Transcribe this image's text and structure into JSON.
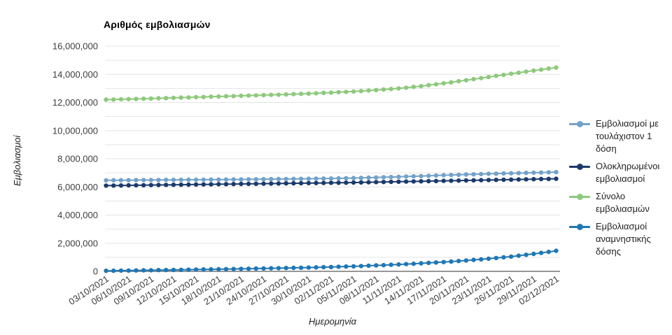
{
  "chart": {
    "title": "Αριθμός εμβολιασμών",
    "x_axis_title": "Ημερομηνία",
    "y_axis_title": "Εμβολιασμοί"
  },
  "colors": {
    "gridline": "#e4e4e4",
    "axis_baseline": "#757575",
    "tick_label": "#3c3c3c",
    "title_text": "#000000"
  },
  "chart_data": {
    "type": "line",
    "title": "Αριθμός εμβολιασμών",
    "xlabel": "Ημερομηνία",
    "ylabel": "Εμβολιασμοί",
    "ylim": [
      0,
      16000000
    ],
    "y_labeled_tick_step": 2000000,
    "y_gridline_step": 1000000,
    "x_tick_every_n_points": 3,
    "grid": true,
    "legend_position": "right",
    "marker_style": "point",
    "x": [
      "03/10/2021",
      "04/10/2021",
      "05/10/2021",
      "06/10/2021",
      "07/10/2021",
      "08/10/2021",
      "09/10/2021",
      "10/10/2021",
      "11/10/2021",
      "12/10/2021",
      "13/10/2021",
      "14/10/2021",
      "15/10/2021",
      "16/10/2021",
      "17/10/2021",
      "18/10/2021",
      "19/10/2021",
      "20/10/2021",
      "21/10/2021",
      "22/10/2021",
      "23/10/2021",
      "24/10/2021",
      "25/10/2021",
      "26/10/2021",
      "27/10/2021",
      "28/10/2021",
      "29/10/2021",
      "30/10/2021",
      "31/10/2021",
      "01/11/2021",
      "02/11/2021",
      "03/11/2021",
      "04/11/2021",
      "05/11/2021",
      "06/11/2021",
      "07/11/2021",
      "08/11/2021",
      "09/11/2021",
      "10/11/2021",
      "11/11/2021",
      "12/11/2021",
      "13/11/2021",
      "14/11/2021",
      "15/11/2021",
      "16/11/2021",
      "17/11/2021",
      "18/11/2021",
      "19/11/2021",
      "20/11/2021",
      "21/11/2021",
      "22/11/2021",
      "23/11/2021",
      "24/11/2021",
      "25/11/2021",
      "26/11/2021",
      "27/11/2021",
      "28/11/2021",
      "29/11/2021",
      "30/11/2021",
      "01/12/2021",
      "02/12/2021"
    ],
    "series": [
      {
        "name": "Εμβολιασμοί με τουλάχιστον 1 δόση",
        "color": "#73a2c9",
        "values": [
          6470000,
          6473000,
          6477000,
          6480000,
          6483000,
          6487000,
          6490000,
          6493000,
          6497000,
          6500000,
          6503000,
          6507000,
          6510000,
          6513000,
          6517000,
          6520000,
          6523000,
          6527000,
          6530000,
          6537000,
          6543000,
          6550000,
          6553000,
          6557000,
          6560000,
          6567000,
          6573000,
          6580000,
          6587000,
          6593000,
          6600000,
          6610000,
          6620000,
          6630000,
          6643000,
          6657000,
          6670000,
          6687000,
          6703000,
          6720000,
          6737000,
          6753000,
          6770000,
          6790000,
          6810000,
          6830000,
          6847000,
          6863000,
          6880000,
          6897000,
          6913000,
          6930000,
          6943000,
          6957000,
          6970000,
          6983000,
          6997000,
          7010000,
          7023000,
          7037000,
          7050000
        ]
      },
      {
        "name": "Ολοκληρωμένοι εμβολιασμοί",
        "color": "#1b3a6b",
        "values": [
          6090000,
          6097000,
          6103000,
          6110000,
          6117000,
          6123000,
          6130000,
          6137000,
          6143000,
          6150000,
          6157000,
          6163000,
          6170000,
          6177000,
          6183000,
          6190000,
          6197000,
          6203000,
          6210000,
          6217000,
          6223000,
          6230000,
          6237000,
          6243000,
          6250000,
          6257000,
          6263000,
          6270000,
          6277000,
          6283000,
          6290000,
          6297000,
          6303000,
          6310000,
          6320000,
          6330000,
          6340000,
          6350000,
          6360000,
          6370000,
          6380000,
          6390000,
          6400000,
          6410000,
          6420000,
          6430000,
          6440000,
          6450000,
          6460000,
          6470000,
          6480000,
          6490000,
          6500000,
          6510000,
          6520000,
          6530000,
          6540000,
          6550000,
          6560000,
          6570000,
          6580000
        ]
      },
      {
        "name": "Σύνολο εμβολιασμών",
        "color": "#8ec97d",
        "values": [
          12200000,
          12210000,
          12230000,
          12240000,
          12250000,
          12270000,
          12280000,
          12300000,
          12310000,
          12330000,
          12350000,
          12360000,
          12380000,
          12390000,
          12410000,
          12420000,
          12440000,
          12450000,
          12470000,
          12490000,
          12500000,
          12520000,
          12540000,
          12550000,
          12570000,
          12590000,
          12610000,
          12630000,
          12650000,
          12680000,
          12700000,
          12730000,
          12750000,
          12780000,
          12810000,
          12850000,
          12880000,
          12920000,
          12960000,
          13000000,
          13050000,
          13110000,
          13160000,
          13230000,
          13290000,
          13360000,
          13430000,
          13510000,
          13580000,
          13660000,
          13730000,
          13810000,
          13890000,
          13960000,
          14040000,
          14110000,
          14190000,
          14260000,
          14330000,
          14410000,
          14480000
        ]
      },
      {
        "name": "Εμβολιασμοί αναμνηστικής δόσης",
        "color": "#1f77b4",
        "values": [
          40000,
          47000,
          53000,
          60000,
          67000,
          73000,
          80000,
          87000,
          93000,
          100000,
          110000,
          120000,
          130000,
          137000,
          143000,
          150000,
          160000,
          170000,
          180000,
          190000,
          200000,
          210000,
          220000,
          230000,
          240000,
          250000,
          260000,
          270000,
          283000,
          297000,
          310000,
          327000,
          343000,
          360000,
          380000,
          400000,
          420000,
          443000,
          467000,
          490000,
          517000,
          543000,
          570000,
          600000,
          630000,
          660000,
          697000,
          733000,
          770000,
          813000,
          857000,
          900000,
          950000,
          1000000,
          1050000,
          1113000,
          1177000,
          1240000,
          1313000,
          1387000,
          1460000
        ]
      }
    ]
  }
}
